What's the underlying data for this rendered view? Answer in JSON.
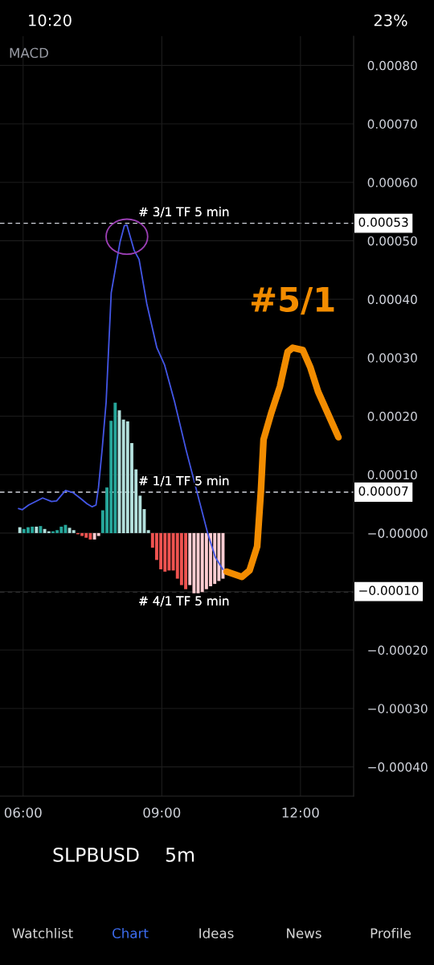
{
  "chart_data": {
    "type": "bar",
    "title": "MACD",
    "xlim": [
      5.5,
      13.15
    ],
    "ylim": [
      -0.00045,
      0.00085
    ],
    "xticks": [
      {
        "value": 6,
        "label": "06:00"
      },
      {
        "value": 9,
        "label": "09:00"
      },
      {
        "value": 12,
        "label": "12:00"
      }
    ],
    "yticks": [
      {
        "value": 0.0008,
        "label": "0.00080"
      },
      {
        "value": 0.0007,
        "label": "0.00070"
      },
      {
        "value": 0.0006,
        "label": "0.00060"
      },
      {
        "value": 0.0005,
        "label": "0.00050"
      },
      {
        "value": 0.0004,
        "label": "0.00040"
      },
      {
        "value": 0.0003,
        "label": "0.00030"
      },
      {
        "value": 0.0002,
        "label": "0.00020"
      },
      {
        "value": 0.0001,
        "label": "0.00010"
      },
      {
        "value": 0,
        "label": "−0.00000"
      },
      {
        "value": -0.0001,
        "label": null
      },
      {
        "value": -0.0002,
        "label": "−0.00020"
      },
      {
        "value": -0.0003,
        "label": "−0.00030"
      },
      {
        "value": -0.0004,
        "label": "−0.00040"
      }
    ],
    "grid": true,
    "series": [
      {
        "x": [
          5.929,
          6.018,
          6.108,
          6.198,
          6.288,
          6.377,
          6.467,
          6.557,
          6.647,
          6.736,
          6.826,
          6.916,
          7.005,
          7.095,
          7.185,
          7.275,
          7.364,
          7.454,
          7.544,
          7.633,
          7.723,
          7.813,
          7.903,
          7.992,
          8.082,
          8.172,
          8.261,
          8.351,
          8.441,
          8.53,
          8.62,
          8.71,
          8.8,
          8.889,
          8.979,
          9.069,
          9.158,
          9.248,
          9.338,
          9.427,
          9.517,
          9.607,
          9.697,
          9.786,
          9.876,
          9.966,
          10.055,
          10.145,
          10.235,
          10.324
        ],
        "values": [
          1e-05,
          7e-06,
          1e-05,
          1.1e-05,
          1.1e-05,
          1.2e-05,
          7e-06,
          3e-06,
          3e-06,
          5e-06,
          1.1e-05,
          1.4e-05,
          9e-06,
          5e-06,
          -2e-06,
          -5e-06,
          -8e-06,
          -1.1e-05,
          -1.1e-05,
          -5e-06,
          3.9e-05,
          7.8e-05,
          0.000192,
          0.000223,
          0.00021,
          0.000194,
          0.000191,
          0.000154,
          0.000109,
          6.4e-05,
          4.1e-05,
          5e-06,
          -2.5e-05,
          -4.6e-05,
          -6.2e-05,
          -6.6e-05,
          -6.4e-05,
          -6.4e-05,
          -7.8e-05,
          -8.9e-05,
          -9.6e-05,
          -8.9e-05,
          -0.000103,
          -0.000103,
          -0.000101,
          -9.6e-05,
          -9.1e-05,
          -8.7e-05,
          -8.2e-05,
          -7.8e-05
        ],
        "colors": [
          "#b2dfdb",
          "#26a69a",
          "#26a69a",
          "#26a69a",
          "#b2dfdb",
          "#26a69a",
          "#b2dfdb",
          "#b2dfdb",
          "#26a69a",
          "#26a69a",
          "#26a69a",
          "#26a69a",
          "#b2dfdb",
          "#b2dfdb",
          "#ef5350",
          "#ef5350",
          "#ef5350",
          "#ef5350",
          "#ffcdd2",
          "#ffcdd2",
          "#26a69a",
          "#26a69a",
          "#26a69a",
          "#26a69a",
          "#b2dfdb",
          "#b2dfdb",
          "#b2dfdb",
          "#b2dfdb",
          "#b2dfdb",
          "#b2dfdb",
          "#b2dfdb",
          "#b2dfdb",
          "#ef5350",
          "#ef5350",
          "#ef5350",
          "#ef5350",
          "#ef5350",
          "#ef5350",
          "#ef5350",
          "#ef5350",
          "#ef5350",
          "#ffcdd2",
          "#ffcdd2",
          "#ffcdd2",
          "#ffcdd2",
          "#ffcdd2",
          "#ffcdd2",
          "#ffcdd2",
          "#ffcdd2",
          "#ffcdd2"
        ]
      },
      {
        "type": "line",
        "color": "#4356e6",
        "x": [
          5.901,
          5.984,
          6.12,
          6.423,
          6.615,
          6.725,
          6.918,
          7.083,
          7.247,
          7.384,
          7.494,
          7.577,
          7.631,
          7.713,
          7.796,
          7.906,
          8.097,
          8.191,
          8.245,
          8.4,
          8.509,
          8.674,
          8.894,
          9.059,
          9.278,
          9.526,
          9.992,
          10.157,
          10.321
        ],
        "values": [
          4.2e-05,
          4e-05,
          4.8e-05,
          6e-05,
          5.4e-05,
          5.5e-05,
          7.3e-05,
          6.9e-05,
          5.9e-05,
          5e-05,
          4.5e-05,
          4.8e-05,
          7.8e-05,
          0.000146,
          0.000224,
          0.000411,
          0.000498,
          0.000526,
          0.000527,
          0.000484,
          0.000468,
          0.000393,
          0.000317,
          0.000288,
          0.000224,
          0.000142,
          0.0,
          -4.1e-05,
          -6.2e-05
        ]
      },
      {
        "type": "line",
        "name": "#5/1",
        "color": "#f28c00",
        "x": [
          10.404,
          10.733,
          10.898,
          11.063,
          11.145,
          11.201,
          11.366,
          11.557,
          11.722,
          11.832,
          12.051,
          12.216,
          12.381,
          12.821
        ],
        "values": [
          -6.6e-05,
          -7.5e-05,
          -6.4e-05,
          -2.3e-05,
          7.3e-05,
          0.00016,
          0.000205,
          0.000251,
          0.00031,
          0.000317,
          0.000313,
          0.000283,
          0.000242,
          0.000164
        ]
      }
    ],
    "ref_lines": [
      {
        "axis": "y",
        "value": 0.00053,
        "label": "0.00053",
        "color": "#d1d4dc",
        "line_style": "dashed"
      },
      {
        "axis": "y",
        "value": 7e-05,
        "label": "0.00007",
        "color": "#d1d4dc",
        "line_style": "dashed"
      },
      {
        "axis": "y",
        "value": -0.0001,
        "label": "−0.00010",
        "color": "#d1d4dc",
        "line_style": "dashed"
      }
    ],
    "annotations": [
      {
        "text": "# 3/1 TF 5 min",
        "y": 0.00053
      },
      {
        "text": "# 1/1 TF 5 min",
        "y": 7e-05
      },
      {
        "text": "# 4/1 TF 5 min",
        "y": -0.0001
      },
      "10:20",
      "23%",
      "SLPBUSD",
      "5m",
      "Watchlist",
      "Chart",
      "Ideas",
      "News",
      "Profile"
    ]
  }
}
